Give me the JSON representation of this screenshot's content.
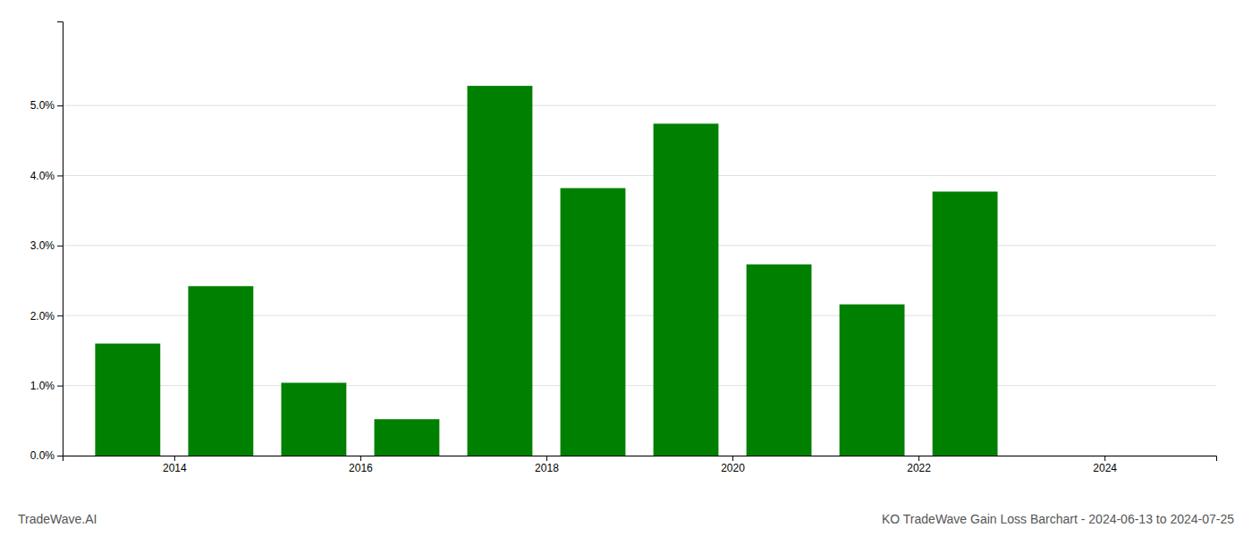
{
  "chart_data": {
    "type": "bar",
    "title": "KO TradeWave Gain Loss Barchart - 2024-06-13 to 2024-07-25",
    "annotations": [
      "TradeWave.AI"
    ],
    "x": [
      2013.5,
      2014.5,
      2015.5,
      2016.5,
      2017.5,
      2018.5,
      2019.5,
      2020.5,
      2021.5,
      2022.5,
      2023.5
    ],
    "values": [
      0.016,
      0.0242,
      0.0104,
      0.0052,
      0.0528,
      0.0382,
      0.0474,
      0.0273,
      0.0216,
      0.0377,
      0.0
    ],
    "color": "#008000",
    "xlim": [
      2012.8,
      2025.2
    ],
    "xticks": [
      2014,
      2016,
      2018,
      2020,
      2022,
      2024
    ],
    "ylim": [
      0,
      0.062
    ],
    "yticks": [
      {
        "value": 0.0,
        "label": "0.0%"
      },
      {
        "value": 0.01,
        "label": "1.0%"
      },
      {
        "value": 0.02,
        "label": "2.0%"
      },
      {
        "value": 0.03,
        "label": "3.0%"
      },
      {
        "value": 0.04,
        "label": "4.0%"
      },
      {
        "value": 0.05,
        "label": "5.0%"
      }
    ],
    "grid": true
  }
}
